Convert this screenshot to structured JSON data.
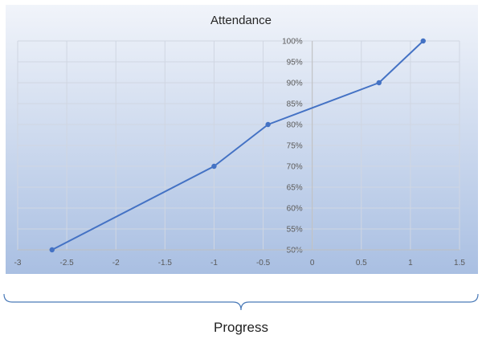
{
  "chart_data": {
    "type": "scatter",
    "title": "Attendance",
    "x": [
      -2.65,
      -1.0,
      -0.45,
      0.68,
      1.13
    ],
    "y": [
      50,
      70,
      80,
      90,
      100
    ],
    "xlim": [
      -3,
      1.5
    ],
    "ylim": [
      50,
      100
    ],
    "x_ticks": [
      "-3",
      "-2.5",
      "-2",
      "-1.5",
      "-1",
      "-0.5",
      "0",
      "0.5",
      "1",
      "1.5"
    ],
    "y_ticks": [
      "50%",
      "55%",
      "60%",
      "65%",
      "70%",
      "75%",
      "80%",
      "85%",
      "90%",
      "95%",
      "100%"
    ],
    "grid": true,
    "line_color": "#4472c4",
    "plot_background": [
      "#f1f4fa",
      "#a9bfe2"
    ]
  },
  "annotation": {
    "label": "Progress",
    "brace_color": "#4a7ab8"
  }
}
